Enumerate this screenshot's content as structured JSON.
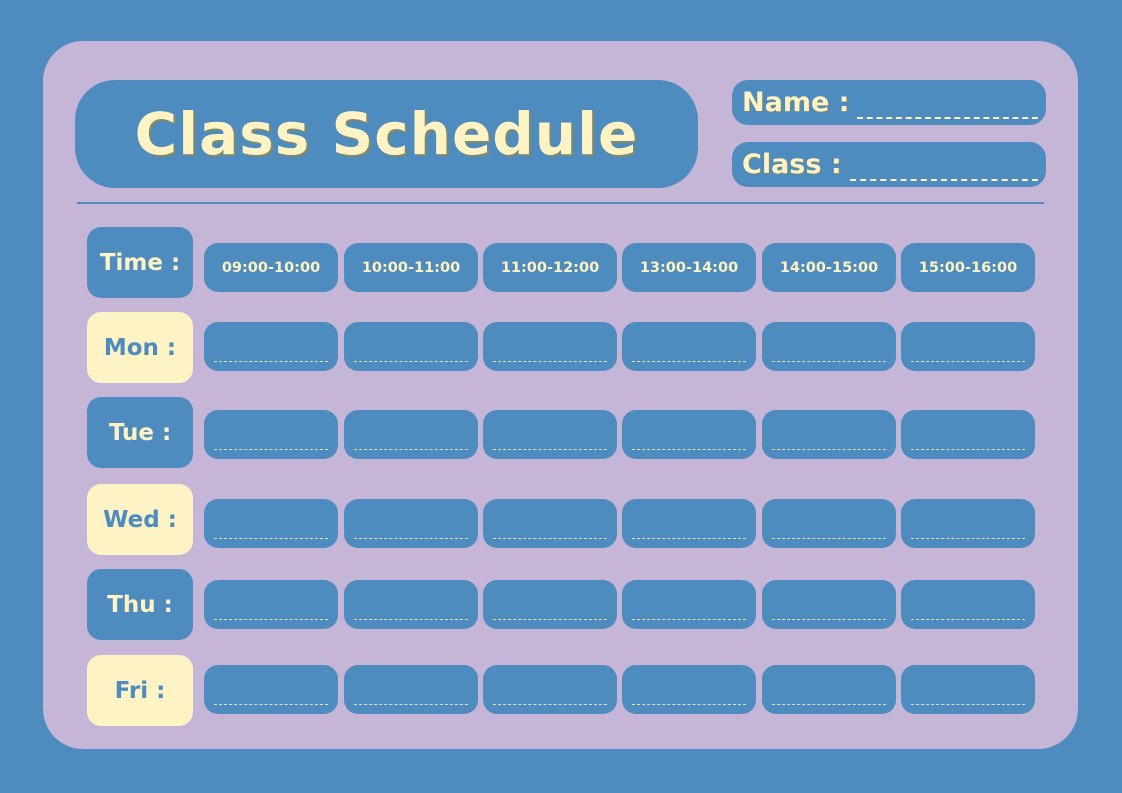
{
  "title": "Class Schedule",
  "fields": {
    "name_label": "Name :",
    "class_label": "Class :"
  },
  "time_label": "Time :",
  "time_slots": [
    "09:00-10:00",
    "10:00-11:00",
    "11:00-12:00",
    "13:00-14:00",
    "14:00-15:00",
    "15:00-16:00"
  ],
  "days": [
    "Mon :",
    "Tue :",
    "Wed :",
    "Thu :",
    "Fri :"
  ],
  "colors": {
    "background": "#4e8bbf",
    "panel": "#c5b5d6",
    "accent": "#fdf3c4"
  }
}
